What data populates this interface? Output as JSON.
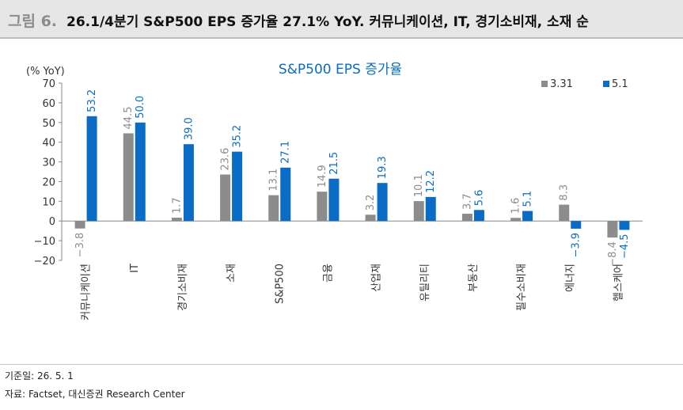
{
  "header": {
    "figure_label": "그림 6.",
    "title": "26.1/4분기 S&P500 EPS 증가율 27.1% YoY. 커뮤니케이션, IT, 경기소비재, 소재 순"
  },
  "footer": {
    "base_date": "기준일: 26. 5. 1",
    "source": "자료: Factset, 대신증권 Research Center"
  },
  "colors": {
    "series_1": "#8c8c8c",
    "series_2": "#0a6cc4",
    "title": "#0a6cc4"
  },
  "chart_data": {
    "type": "bar",
    "title": "S&P500 EPS 증가율",
    "ylabel": "(% YoY)",
    "ylim": [
      -20,
      70
    ],
    "yticks": [
      "70",
      "60",
      "50",
      "40",
      "30",
      "20",
      "10",
      "0",
      "-10",
      "-20"
    ],
    "grid": false,
    "legend": "top-right",
    "categories": [
      "커뮤니케이션",
      "IT",
      "경기소비재",
      "소재",
      "S&P500",
      "금융",
      "산업재",
      "유틸리티",
      "부동산",
      "필수소비재",
      "에너지",
      "헬스케어"
    ],
    "series": [
      {
        "name": "3.31",
        "values": [
          -3.8,
          44.5,
          1.7,
          23.6,
          13.1,
          14.9,
          3.2,
          10.1,
          3.7,
          1.6,
          8.3,
          -8.4
        ]
      },
      {
        "name": "5.1",
        "values": [
          53.2,
          50.0,
          39.0,
          35.2,
          27.1,
          21.5,
          19.3,
          12.2,
          5.6,
          5.1,
          -3.9,
          -4.5
        ]
      }
    ]
  }
}
